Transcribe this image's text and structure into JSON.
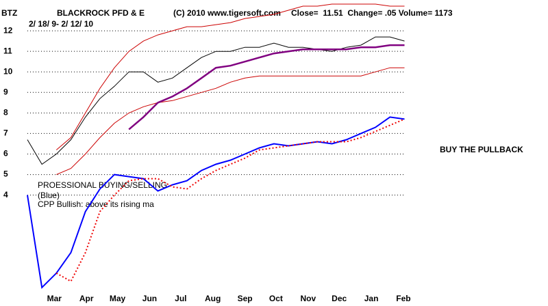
{
  "chart_data": {
    "type": "line",
    "ticker": "BTZ",
    "title": "BLACKROCK PFD & E",
    "copyright": "(C) 2010 www.tigersoft.com",
    "stats": "Close=  11.51  Change= .05 Volume= 1173",
    "subtitle": "2/ 18/ 9- 2/ 12/ 10",
    "annotations": [
      "PROESSIONAL BUYING/SELLING",
      "(Blue)",
      "CPP Bullish: above its rising ma",
      "BUY THE PULLBACK"
    ],
    "x": [
      -15,
      -1,
      13,
      27,
      41,
      55,
      69,
      83,
      97,
      111,
      125,
      139,
      153,
      167,
      181,
      195,
      209,
      223,
      237,
      251,
      265,
      279,
      293,
      307,
      321,
      335,
      349
    ],
    "xlim": [
      -15,
      352
    ],
    "xticks": [
      {
        "value": 11,
        "label": "Mar"
      },
      {
        "value": 42,
        "label": "Apr"
      },
      {
        "value": 72,
        "label": "May"
      },
      {
        "value": 103,
        "label": "Jun"
      },
      {
        "value": 133,
        "label": "Jul"
      },
      {
        "value": 164,
        "label": "Aug"
      },
      {
        "value": 195,
        "label": "Sep"
      },
      {
        "value": 225,
        "label": "Oct"
      },
      {
        "value": 256,
        "label": "Nov"
      },
      {
        "value": 286,
        "label": "Dec"
      },
      {
        "value": 317,
        "label": "Jan"
      },
      {
        "value": 348,
        "label": "Feb"
      }
    ],
    "ylim": [
      -1.4,
      13.5
    ],
    "yticks": [
      4,
      5,
      6,
      7,
      8,
      9,
      10,
      11,
      12
    ],
    "grid": true,
    "series": [
      {
        "color": "#000000",
        "width": 1,
        "line_style": "solid",
        "values": [
          6.7,
          5.5,
          6.0,
          6.7,
          7.8,
          8.7,
          9.3,
          10.0,
          10.0,
          9.5,
          9.7,
          10.2,
          10.7,
          11.0,
          11.0,
          11.2,
          11.2,
          11.4,
          11.2,
          11.2,
          11.1,
          11.0,
          11.2,
          11.3,
          11.7,
          11.7,
          11.5
        ]
      },
      {
        "color": "#cc0000",
        "width": 1,
        "line_style": "solid",
        "values": [
          null,
          null,
          6.2,
          6.8,
          8.0,
          9.2,
          10.2,
          11.0,
          11.5,
          11.8,
          12.0,
          12.2,
          12.2,
          12.3,
          12.4,
          12.6,
          12.7,
          12.8,
          13.0,
          13.2,
          13.2,
          13.3,
          13.3,
          13.3,
          13.3,
          13.2,
          13.2
        ]
      },
      {
        "color": "#cc0000",
        "width": 1,
        "line_style": "solid",
        "values": [
          null,
          null,
          5.0,
          5.3,
          6.0,
          6.8,
          7.5,
          8.0,
          8.3,
          8.5,
          8.6,
          8.8,
          9.0,
          9.2,
          9.5,
          9.7,
          9.8,
          9.8,
          9.8,
          9.8,
          9.8,
          9.8,
          9.8,
          9.8,
          10.0,
          10.2,
          10.2
        ]
      },
      {
        "color": "#800080",
        "width": 2.5,
        "line_style": "solid",
        "values": [
          null,
          null,
          null,
          null,
          null,
          null,
          null,
          7.2,
          7.8,
          8.5,
          8.8,
          9.2,
          9.7,
          10.2,
          10.3,
          10.5,
          10.7,
          10.9,
          11.0,
          11.1,
          11.1,
          11.1,
          11.1,
          11.2,
          11.2,
          11.3,
          11.3
        ]
      },
      {
        "color": "#0000ff",
        "width": 2,
        "line_style": "solid",
        "values": [
          4.0,
          -0.5,
          0.2,
          1.2,
          3.2,
          4.3,
          5.0,
          4.9,
          4.8,
          4.2,
          4.5,
          4.7,
          5.2,
          5.5,
          5.7,
          6.0,
          6.3,
          6.5,
          6.4,
          6.5,
          6.6,
          6.5,
          6.7,
          7.0,
          7.3,
          7.8,
          7.7
        ]
      },
      {
        "color": "#ee0000",
        "width": 2,
        "line_style": "dotted",
        "values": [
          null,
          null,
          0.2,
          -0.2,
          1.2,
          3.2,
          4.0,
          4.7,
          4.8,
          4.8,
          4.4,
          4.3,
          4.8,
          5.2,
          5.5,
          5.8,
          6.2,
          6.3,
          6.4,
          6.5,
          6.6,
          6.6,
          6.6,
          6.8,
          7.1,
          7.4,
          7.7
        ]
      }
    ]
  }
}
